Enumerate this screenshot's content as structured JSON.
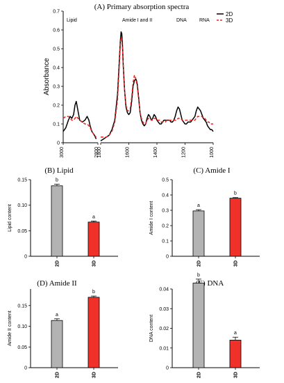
{
  "chart_data": [
    {
      "panel": "(A)",
      "title": "Primary absorption spectra",
      "type": "line",
      "ylabel": "Absorbance",
      "xlim": [
        3000,
        1000
      ],
      "x_axis_break": [
        2800,
        1800
      ],
      "ylim": [
        0,
        0.7
      ],
      "yticks": [
        "0",
        "0.1",
        "0.2",
        "0.3",
        "0.4",
        "0.5",
        "0.6",
        "0.7"
      ],
      "xticks": [
        "3000",
        "2800",
        "1800",
        "1600",
        "1400",
        "1200",
        "1000"
      ],
      "region_labels": [
        "Lipid",
        "Amide I and II",
        "DNA",
        "RNA"
      ],
      "legend_position": "top-right",
      "series": [
        {
          "name": "2D",
          "color": "#000000",
          "style": "solid",
          "x": [
            3000,
            2985,
            2970,
            2960,
            2950,
            2940,
            2932,
            2925,
            2915,
            2905,
            2890,
            2875,
            2862,
            2852,
            2845,
            2835,
            2820,
            2810,
            1800,
            1780,
            1760,
            1740,
            1720,
            1700,
            1680,
            1670,
            1660,
            1655,
            1650,
            1645,
            1640,
            1630,
            1620,
            1610,
            1600,
            1590,
            1580,
            1570,
            1560,
            1550,
            1545,
            1540,
            1530,
            1520,
            1510,
            1500,
            1490,
            1480,
            1470,
            1460,
            1450,
            1440,
            1430,
            1420,
            1410,
            1400,
            1390,
            1380,
            1370,
            1360,
            1350,
            1340,
            1330,
            1320,
            1310,
            1300,
            1290,
            1280,
            1270,
            1260,
            1250,
            1240,
            1230,
            1220,
            1210,
            1200,
            1190,
            1180,
            1170,
            1160,
            1150,
            1140,
            1130,
            1120,
            1110,
            1100,
            1090,
            1080,
            1070,
            1060,
            1050,
            1040,
            1030,
            1020,
            1010,
            1000
          ],
          "y": [
            0.06,
            0.08,
            0.12,
            0.14,
            0.13,
            0.15,
            0.2,
            0.22,
            0.17,
            0.12,
            0.11,
            0.12,
            0.14,
            0.12,
            0.09,
            0.06,
            0.04,
            0.02,
            0.01,
            0.02,
            0.03,
            0.04,
            0.07,
            0.12,
            0.26,
            0.4,
            0.54,
            0.59,
            0.58,
            0.52,
            0.42,
            0.28,
            0.19,
            0.16,
            0.15,
            0.16,
            0.22,
            0.3,
            0.33,
            0.34,
            0.33,
            0.31,
            0.24,
            0.16,
            0.12,
            0.1,
            0.09,
            0.1,
            0.13,
            0.15,
            0.14,
            0.12,
            0.13,
            0.15,
            0.14,
            0.12,
            0.11,
            0.1,
            0.1,
            0.11,
            0.12,
            0.12,
            0.12,
            0.12,
            0.12,
            0.11,
            0.11,
            0.12,
            0.14,
            0.17,
            0.19,
            0.18,
            0.15,
            0.12,
            0.11,
            0.1,
            0.1,
            0.11,
            0.11,
            0.11,
            0.12,
            0.13,
            0.14,
            0.17,
            0.19,
            0.18,
            0.17,
            0.15,
            0.13,
            0.12,
            0.11,
            0.09,
            0.08,
            0.07,
            0.07,
            0.06
          ]
        },
        {
          "name": "3D",
          "color": "#e8231f",
          "style": "dashed",
          "x": [
            3000,
            2985,
            2970,
            2960,
            2950,
            2940,
            2932,
            2925,
            2915,
            2905,
            2890,
            2875,
            2862,
            2852,
            2845,
            2835,
            2820,
            2810,
            1800,
            1780,
            1760,
            1740,
            1720,
            1700,
            1680,
            1670,
            1660,
            1655,
            1650,
            1645,
            1640,
            1630,
            1620,
            1610,
            1600,
            1590,
            1580,
            1570,
            1560,
            1550,
            1545,
            1540,
            1530,
            1520,
            1510,
            1500,
            1490,
            1480,
            1470,
            1460,
            1450,
            1440,
            1430,
            1420,
            1410,
            1400,
            1390,
            1380,
            1370,
            1360,
            1350,
            1340,
            1330,
            1320,
            1310,
            1300,
            1290,
            1280,
            1270,
            1260,
            1250,
            1240,
            1230,
            1220,
            1210,
            1200,
            1190,
            1180,
            1170,
            1160,
            1150,
            1140,
            1130,
            1120,
            1110,
            1100,
            1090,
            1080,
            1070,
            1060,
            1050,
            1040,
            1030,
            1020,
            1010,
            1000
          ],
          "y": [
            0.13,
            0.14,
            0.14,
            0.13,
            0.12,
            0.12,
            0.13,
            0.14,
            0.13,
            0.12,
            0.11,
            0.1,
            0.1,
            0.09,
            0.08,
            0.06,
            0.04,
            0.03,
            0.03,
            0.03,
            0.03,
            0.04,
            0.06,
            0.11,
            0.23,
            0.37,
            0.52,
            0.56,
            0.55,
            0.5,
            0.41,
            0.28,
            0.2,
            0.17,
            0.17,
            0.18,
            0.24,
            0.32,
            0.36,
            0.34,
            0.32,
            0.3,
            0.23,
            0.16,
            0.13,
            0.11,
            0.1,
            0.1,
            0.12,
            0.13,
            0.13,
            0.12,
            0.12,
            0.13,
            0.13,
            0.12,
            0.12,
            0.12,
            0.11,
            0.11,
            0.11,
            0.11,
            0.12,
            0.12,
            0.12,
            0.12,
            0.12,
            0.12,
            0.12,
            0.12,
            0.13,
            0.13,
            0.13,
            0.12,
            0.12,
            0.12,
            0.12,
            0.12,
            0.12,
            0.12,
            0.12,
            0.12,
            0.12,
            0.13,
            0.14,
            0.14,
            0.14,
            0.14,
            0.13,
            0.13,
            0.12,
            0.11,
            0.11,
            0.1,
            0.1,
            0.1
          ]
        }
      ]
    },
    {
      "panel": "(B)",
      "title": "Lipid",
      "type": "bar",
      "ylabel": "Lipid content",
      "categories": [
        "2D",
        "3D"
      ],
      "values": [
        0.138,
        0.067
      ],
      "errors": [
        0.003,
        0.002
      ],
      "letters": [
        "b",
        "a"
      ],
      "colors": [
        "#b3b3b3",
        "#f0312a"
      ],
      "ylim": [
        0,
        0.15
      ],
      "yticks": [
        0,
        0.05,
        0.1,
        0.15
      ],
      "yticklabels": [
        "0",
        "0.05",
        "0.10",
        "0.15"
      ]
    },
    {
      "panel": "(C)",
      "title": "Amide I",
      "type": "bar",
      "ylabel": "Amide I content",
      "categories": [
        "2D",
        "3D"
      ],
      "values": [
        0.296,
        0.379
      ],
      "errors": [
        0.008,
        0.004
      ],
      "letters": [
        "a",
        "b"
      ],
      "colors": [
        "#b3b3b3",
        "#f0312a"
      ],
      "ylim": [
        0,
        0.5
      ],
      "yticks": [
        0,
        0.1,
        0.2,
        0.3,
        0.4,
        0.5
      ],
      "yticklabels": [
        "0",
        "0.1",
        "0.2",
        "0.3",
        "0.4",
        "0.5"
      ]
    },
    {
      "panel": "(D)",
      "title": "Amide II",
      "type": "bar",
      "ylabel": "Amide II content",
      "categories": [
        "2D",
        "3D"
      ],
      "values": [
        0.114,
        0.17
      ],
      "errors": [
        0.004,
        0.003
      ],
      "letters": [
        "a",
        "b"
      ],
      "colors": [
        "#b3b3b3",
        "#f0312a"
      ],
      "ylim": [
        0,
        0.19
      ],
      "yticks": [
        0,
        0.05,
        0.1,
        0.15
      ],
      "yticklabels": [
        "0",
        "0.05",
        "0.10",
        "0.15"
      ]
    },
    {
      "panel": "(E)",
      "title": "DNA",
      "type": "bar",
      "ylabel": "DNA content",
      "categories": [
        "2D",
        "3D"
      ],
      "values": [
        0.043,
        0.014
      ],
      "errors": [
        0.002,
        0.0015
      ],
      "letters": [
        "b",
        "a"
      ],
      "colors": [
        "#b3b3b3",
        "#f0312a"
      ],
      "ylim": [
        0,
        0.04
      ],
      "yticks": [
        0,
        0.01,
        0.02,
        0.03,
        0.04
      ],
      "yticklabels": [
        "0",
        "0.01",
        "0.02",
        "0.03",
        "0.04"
      ]
    }
  ]
}
